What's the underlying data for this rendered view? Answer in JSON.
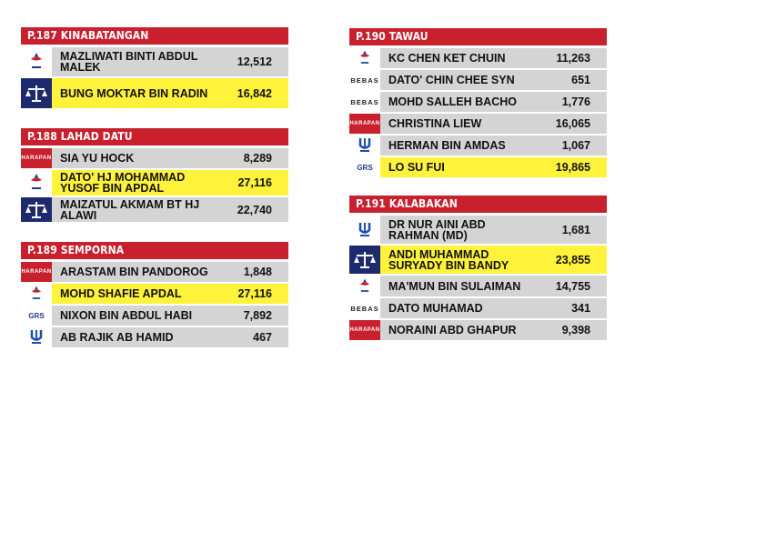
{
  "constituencies": [
    {
      "title": "P.187 KINABATANGAN",
      "rows": [
        {
          "logo": "warisan-logo",
          "name": "MAZLIWATI BINTI ABDUL MALEK",
          "votes": "12,512",
          "winner": false
        },
        {
          "logo": "bn-logo",
          "name": "BUNG MOKTAR BIN RADIN",
          "votes": "16,842",
          "winner": true
        }
      ]
    },
    {
      "title": "P.188 LAHAD DATU",
      "rows": [
        {
          "logo": "harapan-logo",
          "name": "SIA YU HOCK",
          "votes": "8,289",
          "winner": false
        },
        {
          "logo": "warisan-logo",
          "name": "DATO' HJ MOHAMMAD YUSOF BIN APDAL",
          "votes": "27,116",
          "winner": true
        },
        {
          "logo": "bn-logo",
          "name": "MAIZATUL AKMAM BT HJ ALAWI",
          "votes": "22,740",
          "winner": false
        }
      ]
    },
    {
      "title": "P.189 SEMPORNA",
      "rows": [
        {
          "logo": "harapan-logo",
          "name": "ARASTAM BIN PANDOROG",
          "votes": "1,848",
          "winner": false
        },
        {
          "logo": "warisan-logo",
          "name": "MOHD SHAFIE APDAL",
          "votes": "27,116",
          "winner": true
        },
        {
          "logo": "grs-logo",
          "name": "NIXON BIN ABDUL HABI",
          "votes": "7,892",
          "winner": false
        },
        {
          "logo": "pejuang-logo",
          "name": "AB RAJIK AB HAMID",
          "votes": "467",
          "winner": false
        }
      ]
    },
    {
      "title": "P.190 TAWAU",
      "rows": [
        {
          "logo": "warisan-logo",
          "name": "KC CHEN KET CHUIN",
          "votes": "11,263",
          "winner": false
        },
        {
          "logo": "bebas-logo",
          "name": "DATO' CHIN CHEE SYN",
          "votes": "651",
          "winner": false
        },
        {
          "logo": "bebas-logo",
          "name": "MOHD SALLEH BACHO",
          "votes": "1,776",
          "winner": false
        },
        {
          "logo": "harapan-logo",
          "name": "CHRISTINA LIEW",
          "votes": "16,065",
          "winner": false
        },
        {
          "logo": "pejuang-logo",
          "name": "HERMAN BIN AMDAS",
          "votes": "1,067",
          "winner": false
        },
        {
          "logo": "grs-logo",
          "name": "LO SU FUI",
          "votes": "19,865",
          "winner": true
        }
      ]
    },
    {
      "title": "P.191 KALABAKAN",
      "rows": [
        {
          "logo": "pejuang-logo",
          "name": "DR NUR AINI ABD RAHMAN (MD)",
          "votes": "1,681",
          "winner": false
        },
        {
          "logo": "bn-logo",
          "name": "ANDI MUHAMMAD SURYADY BIN BANDY",
          "votes": "23,855",
          "winner": true
        },
        {
          "logo": "warisan-logo",
          "name": "MA'MUN BIN SULAIMAN",
          "votes": "14,755",
          "winner": false
        },
        {
          "logo": "bebas-logo",
          "name": "DATO MUHAMAD",
          "votes": "341",
          "winner": false
        },
        {
          "logo": "harapan-logo",
          "name": "NORAINI ABD GHAPUR",
          "votes": "9,398",
          "winner": false
        }
      ]
    }
  ],
  "logo_labels": {
    "bebas": "BEBAS",
    "harapan": "HARAPAN",
    "grs": "GRS"
  },
  "colors": {
    "header_red": "#c8202c",
    "winner_yellow": "#fff23b",
    "row_grey": "#d4d4d4",
    "bn_navy": "#1e2a6e"
  }
}
